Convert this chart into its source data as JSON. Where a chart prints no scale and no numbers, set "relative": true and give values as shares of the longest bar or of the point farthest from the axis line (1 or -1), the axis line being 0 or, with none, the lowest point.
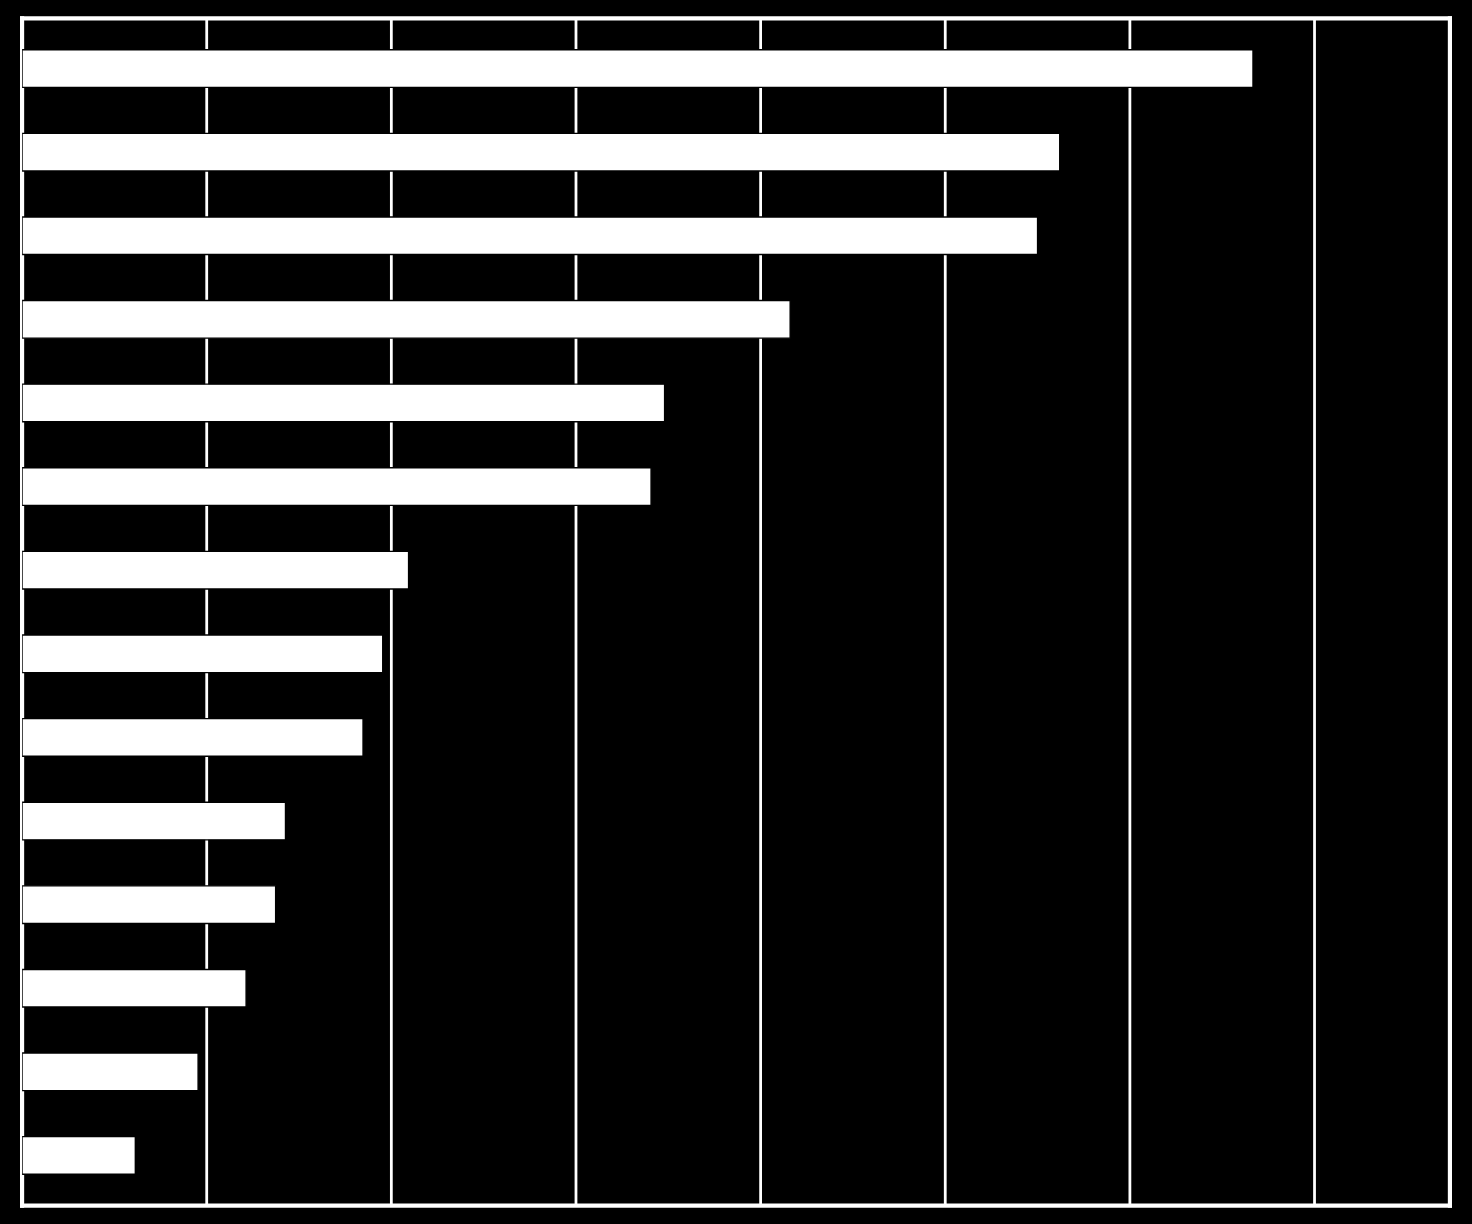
{
  "chart_data": {
    "type": "bar",
    "orientation": "horizontal",
    "relative": true,
    "grid": "x",
    "color": "#ffffff",
    "categories": [
      null,
      null,
      null,
      null,
      null,
      null,
      null,
      null,
      null,
      null,
      null,
      null,
      null,
      null
    ],
    "values": [
      1,
      0.843,
      0.825,
      0.624,
      0.522,
      0.511,
      0.314,
      0.293,
      0.277,
      0.214,
      0.206,
      0.182,
      0.143,
      0.092
    ]
  }
}
